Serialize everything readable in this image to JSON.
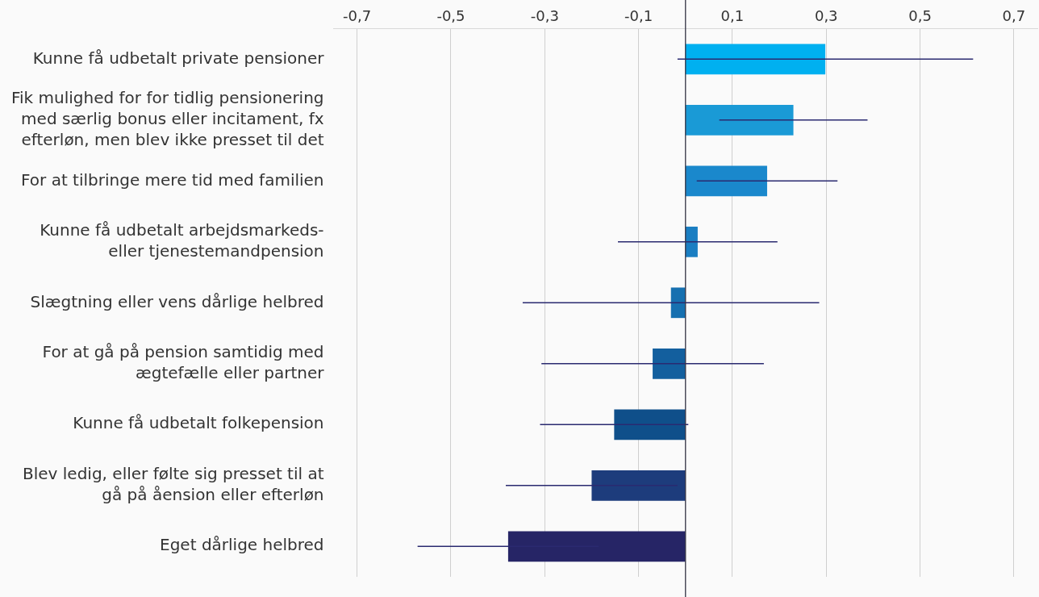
{
  "chart_data": {
    "type": "bar",
    "orientation": "horizontal",
    "categories": [
      "Kunne få udbetalt private pensioner",
      "Fik mulighed for for tidlig pensionering med særlig bonus eller incitament, fx efterløn, men blev ikke presset til det",
      "For at tilbringe mere tid med familien",
      "Kunne få udbetalt arbejdsmarkeds- eller tjenestemandpension",
      "Slægtning eller vens dårlige helbred",
      "For at gå på pension samtidig med ægtefælle eller partner",
      "Kunne få udbetalt folkepension",
      "Blev ledig, eller følte sig presset til at gå på åension eller efterløn",
      "Eget dårlige helbred"
    ],
    "values": [
      0.298,
      0.23,
      0.174,
      0.026,
      -0.031,
      -0.07,
      -0.152,
      -0.2,
      -0.378
    ],
    "colors": [
      "#00b0f0",
      "#1a9ad6",
      "#1a88cc",
      "#1a7ec2",
      "#1670b0",
      "#135f9e",
      "#0f4f8a",
      "#1d3c7c",
      "#262566"
    ],
    "errors": [
      0.315,
      0.158,
      0.15,
      0.17,
      0.316,
      0.237,
      0.158,
      0.183,
      0.193
    ],
    "xlim": [
      -0.75,
      0.75
    ],
    "xticks": [
      {
        "value": -0.7,
        "label": "-0,7"
      },
      {
        "value": -0.5,
        "label": "-0,5"
      },
      {
        "value": -0.3,
        "label": "-0,3"
      },
      {
        "value": -0.1,
        "label": "-0,1"
      },
      {
        "value": 0.1,
        "label": "0,1"
      },
      {
        "value": 0.3,
        "label": "0,3"
      },
      {
        "value": 0.5,
        "label": "0,5"
      },
      {
        "value": 0.7,
        "label": "0,7"
      }
    ],
    "grid": "x",
    "ref_lines": [
      {
        "axis": "x",
        "value": 0,
        "color": "#333344"
      }
    ]
  }
}
